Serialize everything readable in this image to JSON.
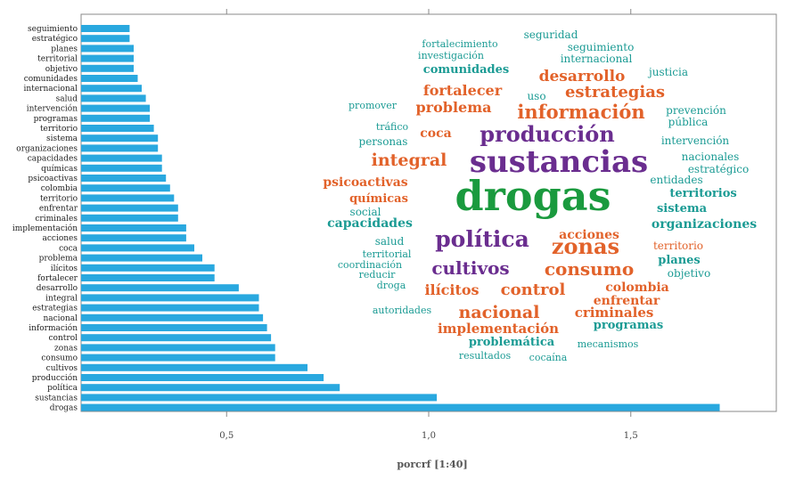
{
  "chart_data": [
    {
      "type": "bar",
      "orientation": "horizontal",
      "xlabel": "porcrf [1:40]",
      "xlim": [
        0.14,
        1.86
      ],
      "xticks": [
        0.5,
        1.0,
        1.5
      ],
      "xtick_labels": [
        "0,5",
        "1,0",
        "1,5"
      ],
      "bar_color": "#29a8df",
      "categories": [
        "seguimiento",
        "estratégico",
        "planes",
        "territorial",
        "objetivo",
        "comunidades",
        "internacional",
        "salud",
        "intervención",
        "programas",
        "territorio",
        "sistema",
        "organizaciones",
        "capacidades",
        "químicas",
        "psicoactivas",
        "colombia",
        "territorio",
        "enfrentar",
        "criminales",
        "implementación",
        "acciones",
        "coca",
        "problema",
        "ilícitos",
        "fortalecer",
        "desarrollo",
        "integral",
        "estrategias",
        "nacional",
        "información",
        "control",
        "zonas",
        "consumo",
        "cultivos",
        "producción",
        "política",
        "sustancias",
        "drogas"
      ],
      "values": [
        0.26,
        0.26,
        0.27,
        0.27,
        0.27,
        0.28,
        0.29,
        0.3,
        0.31,
        0.31,
        0.32,
        0.33,
        0.33,
        0.34,
        0.34,
        0.35,
        0.36,
        0.37,
        0.38,
        0.38,
        0.4,
        0.4,
        0.42,
        0.44,
        0.47,
        0.47,
        0.53,
        0.58,
        0.58,
        0.59,
        0.6,
        0.61,
        0.62,
        0.62,
        0.7,
        0.74,
        0.78,
        1.02,
        1.72
      ]
    },
    {
      "type": "wordcloud",
      "words": [
        {
          "text": "drogas",
          "size": 46,
          "color": "#1a9a3e"
        },
        {
          "text": "sustancias",
          "size": 34,
          "color": "#6a2d8f"
        },
        {
          "text": "política",
          "size": 25,
          "color": "#6a2d8f"
        },
        {
          "text": "producción",
          "size": 24,
          "color": "#6a2d8f"
        },
        {
          "text": "zonas",
          "size": 24,
          "color": "#e2622a"
        },
        {
          "text": "cultivos",
          "size": 20,
          "color": "#6a2d8f"
        },
        {
          "text": "información",
          "size": 21,
          "color": "#e2622a"
        },
        {
          "text": "consumo",
          "size": 20,
          "color": "#e2622a"
        },
        {
          "text": "nacional",
          "size": 19,
          "color": "#e2622a"
        },
        {
          "text": "integral",
          "size": 19,
          "color": "#e2622a"
        },
        {
          "text": "control",
          "size": 18,
          "color": "#e2622a"
        },
        {
          "text": "estrategias",
          "size": 18,
          "color": "#e2622a"
        },
        {
          "text": "desarrollo",
          "size": 17,
          "color": "#e2622a"
        },
        {
          "text": "fortalecer",
          "size": 16,
          "color": "#e2622a"
        },
        {
          "text": "problema",
          "size": 16,
          "color": "#e2622a"
        },
        {
          "text": "ilícitos",
          "size": 16,
          "color": "#e2622a"
        },
        {
          "text": "implementación",
          "size": 15,
          "color": "#e2622a"
        },
        {
          "text": "criminales",
          "size": 15,
          "color": "#e2622a"
        },
        {
          "text": "colombia",
          "size": 14,
          "color": "#e2622a"
        },
        {
          "text": "enfrentar",
          "size": 14,
          "color": "#e2622a"
        },
        {
          "text": "acciones",
          "size": 14,
          "color": "#e2622a"
        },
        {
          "text": "psicoactivas",
          "size": 14,
          "color": "#e2622a"
        },
        {
          "text": "químicas",
          "size": 13,
          "color": "#e2622a"
        },
        {
          "text": "coca",
          "size": 14,
          "color": "#e2622a"
        },
        {
          "text": "territorio",
          "size": 12,
          "color": "#e2622a"
        },
        {
          "text": "capacidades",
          "size": 14,
          "color": "#1b9b94"
        },
        {
          "text": "organizaciones",
          "size": 14,
          "color": "#1b9b94"
        },
        {
          "text": "comunidades",
          "size": 13,
          "color": "#1b9b94"
        },
        {
          "text": "programas",
          "size": 13,
          "color": "#1b9b94"
        },
        {
          "text": "problemática",
          "size": 13,
          "color": "#1b9b94"
        },
        {
          "text": "planes",
          "size": 13,
          "color": "#1b9b94"
        },
        {
          "text": "territorios",
          "size": 13,
          "color": "#1b9b94"
        },
        {
          "text": "sistema",
          "size": 13,
          "color": "#1b9b94"
        },
        {
          "text": "internacional",
          "size": 12,
          "color": "#1b9b94"
        },
        {
          "text": "seguimiento",
          "size": 12,
          "color": "#1b9b94"
        },
        {
          "text": "seguridad",
          "size": 12,
          "color": "#1b9b94"
        },
        {
          "text": "salud",
          "size": 12,
          "color": "#1b9b94"
        },
        {
          "text": "social",
          "size": 12,
          "color": "#1b9b94"
        },
        {
          "text": "personas",
          "size": 12,
          "color": "#1b9b94"
        },
        {
          "text": "uso",
          "size": 12,
          "color": "#1b9b94"
        },
        {
          "text": "objetivo",
          "size": 12,
          "color": "#1b9b94"
        },
        {
          "text": "intervención",
          "size": 12,
          "color": "#1b9b94"
        },
        {
          "text": "entidades",
          "size": 12,
          "color": "#1b9b94"
        },
        {
          "text": "justicia",
          "size": 12,
          "color": "#1b9b94"
        },
        {
          "text": "prevención",
          "size": 12,
          "color": "#1b9b94"
        },
        {
          "text": "pública",
          "size": 12,
          "color": "#1b9b94"
        },
        {
          "text": "nacionales",
          "size": 12,
          "color": "#1b9b94"
        },
        {
          "text": "estratégico",
          "size": 12,
          "color": "#1b9b94"
        },
        {
          "text": "mecanismos",
          "size": 11,
          "color": "#1b9b94"
        },
        {
          "text": "autoridades",
          "size": 11,
          "color": "#1b9b94"
        },
        {
          "text": "resultados",
          "size": 11,
          "color": "#1b9b94"
        },
        {
          "text": "cocaína",
          "size": 11,
          "color": "#1b9b94"
        },
        {
          "text": "promover",
          "size": 11,
          "color": "#1b9b94"
        },
        {
          "text": "tráfico",
          "size": 11,
          "color": "#1b9b94"
        },
        {
          "text": "fortalecimiento",
          "size": 11,
          "color": "#1b9b94"
        },
        {
          "text": "investigación",
          "size": 11,
          "color": "#1b9b94"
        },
        {
          "text": "territorial",
          "size": 11,
          "color": "#1b9b94"
        },
        {
          "text": "coordinación",
          "size": 11,
          "color": "#1b9b94"
        },
        {
          "text": "reducir",
          "size": 11,
          "color": "#1b9b94"
        },
        {
          "text": "droga",
          "size": 11,
          "color": "#1b9b94"
        }
      ]
    }
  ]
}
